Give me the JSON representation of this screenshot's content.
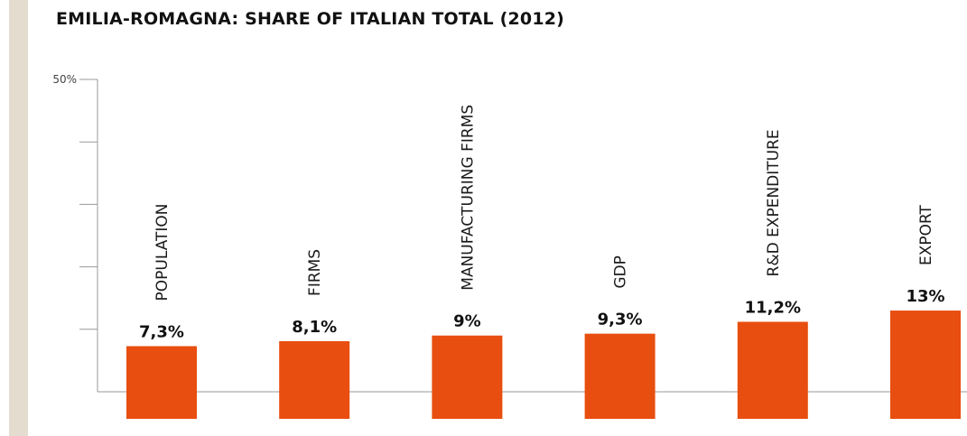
{
  "title": "EMILIA-ROMAGNA: SHARE OF ITALIAN TOTAL (2012)",
  "colors": {
    "bar": "#e84e0f",
    "axis": "#999999",
    "stripe": "#e3dccf"
  },
  "chart_data": {
    "type": "bar",
    "title": "EMILIA-ROMAGNA: SHARE OF ITALIAN TOTAL (2012)",
    "categories": [
      "POPULATION",
      "FIRMS",
      "MANUFACTURING FIRMS",
      "GDP",
      "R&D EXPENDITURE",
      "EXPORT"
    ],
    "values": [
      7.3,
      8.1,
      9,
      9.3,
      11.2,
      13
    ],
    "value_labels": [
      "7,3%",
      "8,1%",
      "9%",
      "9,3%",
      "11,2%",
      "13%"
    ],
    "ylim": [
      0,
      50
    ],
    "y_tick_labels": [
      "50%"
    ],
    "grid": false,
    "xlabel": "",
    "ylabel": ""
  }
}
